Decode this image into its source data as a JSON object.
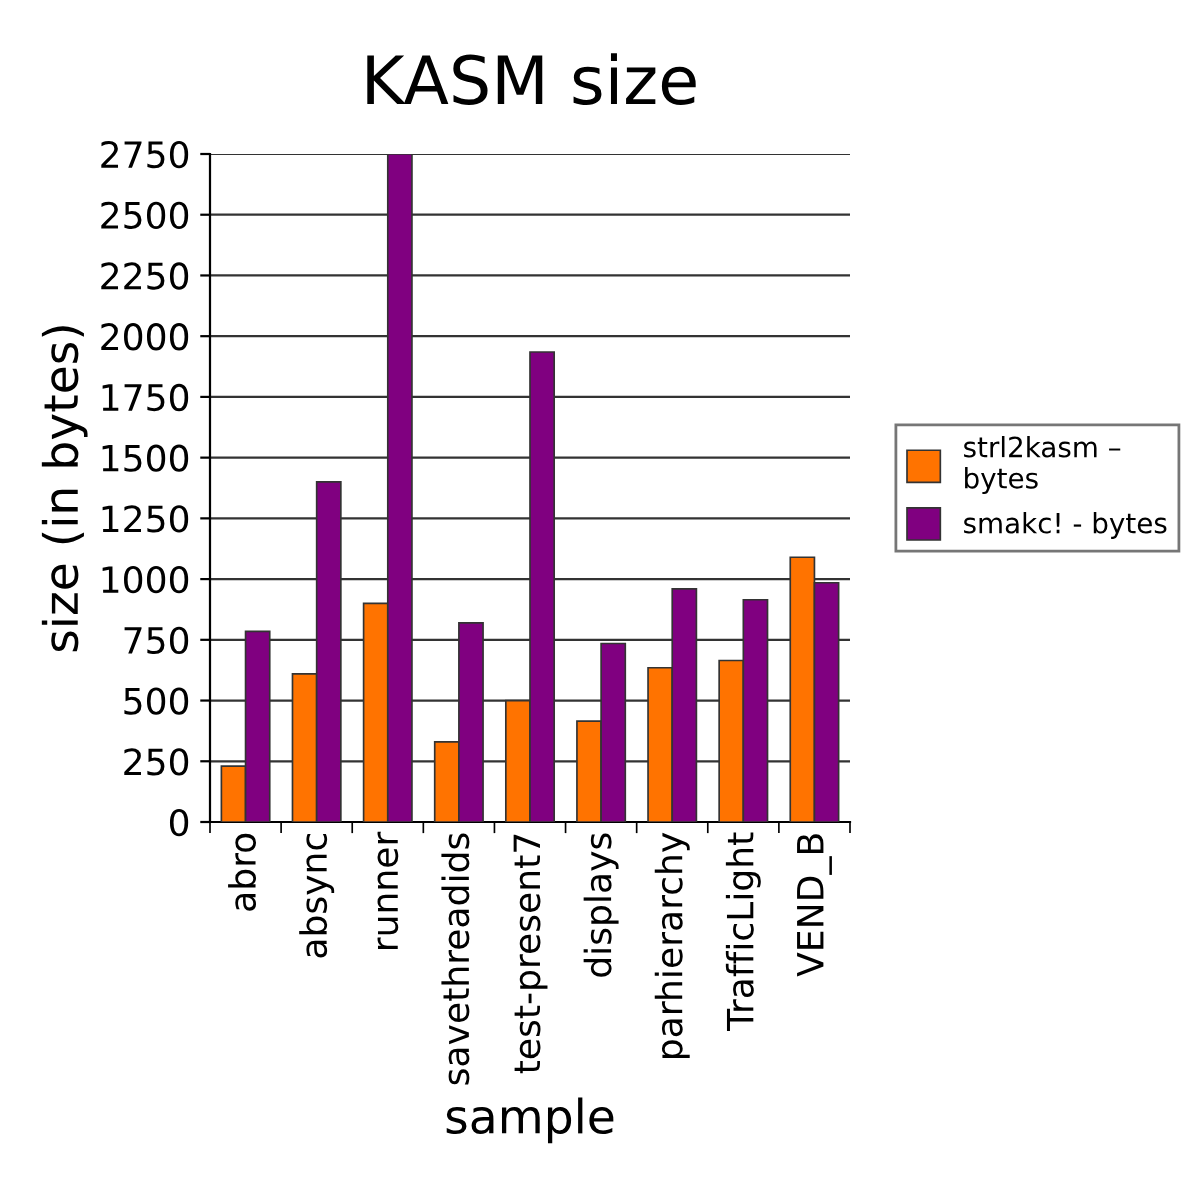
{
  "chart_data": {
    "type": "bar",
    "title": "KASM size",
    "xlabel": "sample",
    "ylabel": "size (in bytes)",
    "categories": [
      "abro",
      "absync",
      "runner",
      "savethreadids",
      "test-present7",
      "displays",
      "parhierarchy",
      "TrafficLight",
      "VEND_B"
    ],
    "series": [
      {
        "name": "strl2kasm –\nbytes",
        "color": "#ff7300",
        "values": [
          230,
          610,
          900,
          330,
          500,
          415,
          635,
          665,
          1090
        ]
      },
      {
        "name": "smakc! - bytes",
        "color": "#800080",
        "values": [
          785,
          1400,
          2750,
          820,
          1935,
          735,
          960,
          915,
          985
        ]
      }
    ],
    "ylim": [
      0,
      2750
    ],
    "yticks": [
      0,
      250,
      500,
      750,
      1000,
      1250,
      1500,
      1750,
      2000,
      2250,
      2500,
      2750
    ],
    "grid": "y",
    "legend": "right"
  }
}
